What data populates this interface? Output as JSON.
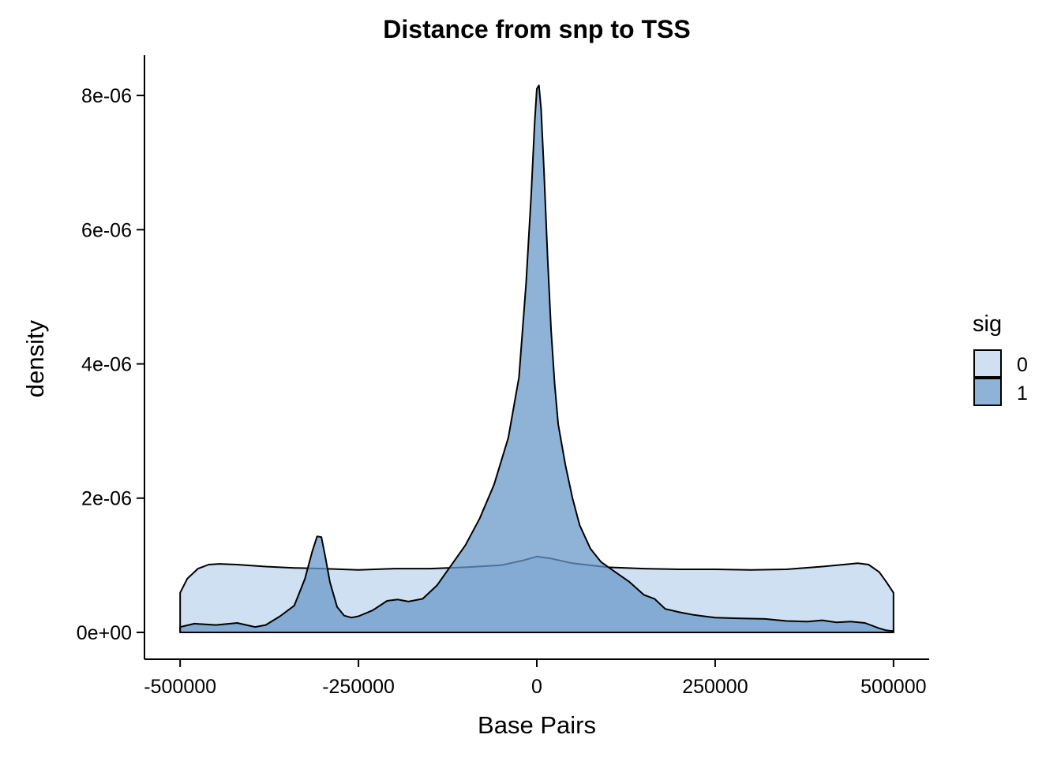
{
  "chart_data": {
    "type": "area",
    "subtype": "density",
    "title": "Distance from snp to TSS",
    "xlabel": "Base Pairs",
    "ylabel": "density",
    "xlim": [
      -550000,
      550000
    ],
    "ylim": [
      -4e-07,
      8.6e-06
    ],
    "x_ticks": [
      -500000,
      -250000,
      0,
      250000,
      500000
    ],
    "x_tick_labels": [
      "-500000",
      "-250000",
      "0",
      "250000",
      "500000"
    ],
    "y_ticks": [
      0,
      2e-06,
      4e-06,
      6e-06,
      8e-06
    ],
    "y_tick_labels": [
      "0e+00",
      "2e-06",
      "4e-06",
      "6e-06",
      "8e-06"
    ],
    "grid": false,
    "legend": {
      "title": "sig",
      "position": "right",
      "entries": [
        "0",
        "1"
      ]
    },
    "series": [
      {
        "name": "0",
        "color": "#c6dbef",
        "opacity": 0.85,
        "x": [
          -500000,
          -490000,
          -475000,
          -460000,
          -445000,
          -420000,
          -380000,
          -340000,
          -300000,
          -250000,
          -200000,
          -150000,
          -100000,
          -50000,
          -20000,
          0,
          20000,
          50000,
          100000,
          150000,
          200000,
          250000,
          300000,
          350000,
          400000,
          430000,
          450000,
          465000,
          480000,
          490000,
          500000
        ],
        "y": [
          5.9e-07,
          8e-07,
          9.5e-07,
          1.01e-06,
          1.02e-06,
          1.01e-06,
          9.8e-07,
          9.6e-07,
          9.5e-07,
          9.3e-07,
          9.5e-07,
          9.5e-07,
          9.7e-07,
          1e-06,
          1.07e-06,
          1.13e-06,
          1.1e-06,
          1.03e-06,
          9.7e-07,
          9.5e-07,
          9.4e-07,
          9.4e-07,
          9.3e-07,
          9.4e-07,
          9.8e-07,
          1.01e-06,
          1.03e-06,
          1.01e-06,
          9e-07,
          7.5e-07,
          5.9e-07
        ]
      },
      {
        "name": "1",
        "color": "#6a9ac9",
        "opacity": 0.75,
        "x": [
          -500000,
          -480000,
          -450000,
          -420000,
          -395000,
          -380000,
          -360000,
          -340000,
          -325000,
          -315000,
          -308000,
          -302000,
          -296000,
          -290000,
          -280000,
          -270000,
          -260000,
          -250000,
          -230000,
          -210000,
          -195000,
          -180000,
          -160000,
          -140000,
          -120000,
          -100000,
          -80000,
          -60000,
          -40000,
          -25000,
          -15000,
          -8000,
          -3000,
          0,
          3000,
          6000,
          10000,
          15000,
          20000,
          25000,
          30000,
          40000,
          50000,
          60000,
          75000,
          90000,
          110000,
          130000,
          150000,
          165000,
          180000,
          200000,
          220000,
          250000,
          280000,
          320000,
          350000,
          380000,
          400000,
          420000,
          440000,
          460000,
          480000,
          490000,
          500000
        ],
        "y": [
          8e-08,
          1.3e-07,
          1.1e-07,
          1.4e-07,
          8e-08,
          1.1e-07,
          2.4e-07,
          4e-07,
          8e-07,
          1.2e-06,
          1.43e-06,
          1.42e-06,
          1.1e-06,
          7.5e-07,
          3.8e-07,
          2.5e-07,
          2.2e-07,
          2.4e-07,
          3.3e-07,
          4.7e-07,
          4.9e-07,
          4.6e-07,
          5e-07,
          7e-07,
          1e-06,
          1.3e-06,
          1.7e-06,
          2.2e-06,
          2.9e-06,
          3.8e-06,
          5.2e-06,
          6.5e-06,
          7.6e-06,
          8.1e-06,
          8.15e-06,
          7.8e-06,
          6.9e-06,
          5.6e-06,
          4.5e-06,
          3.7e-06,
          3.1e-06,
          2.5e-06,
          2e-06,
          1.6e-06,
          1.25e-06,
          1.05e-06,
          9e-07,
          7.5e-07,
          5.6e-07,
          5e-07,
          3.5e-07,
          3e-07,
          2.6e-07,
          2.2e-07,
          2.1e-07,
          2e-07,
          1.7e-07,
          1.6e-07,
          1.8e-07,
          1.5e-07,
          1.6e-07,
          1.4e-07,
          6e-08,
          3e-08,
          2e-08
        ]
      }
    ]
  }
}
